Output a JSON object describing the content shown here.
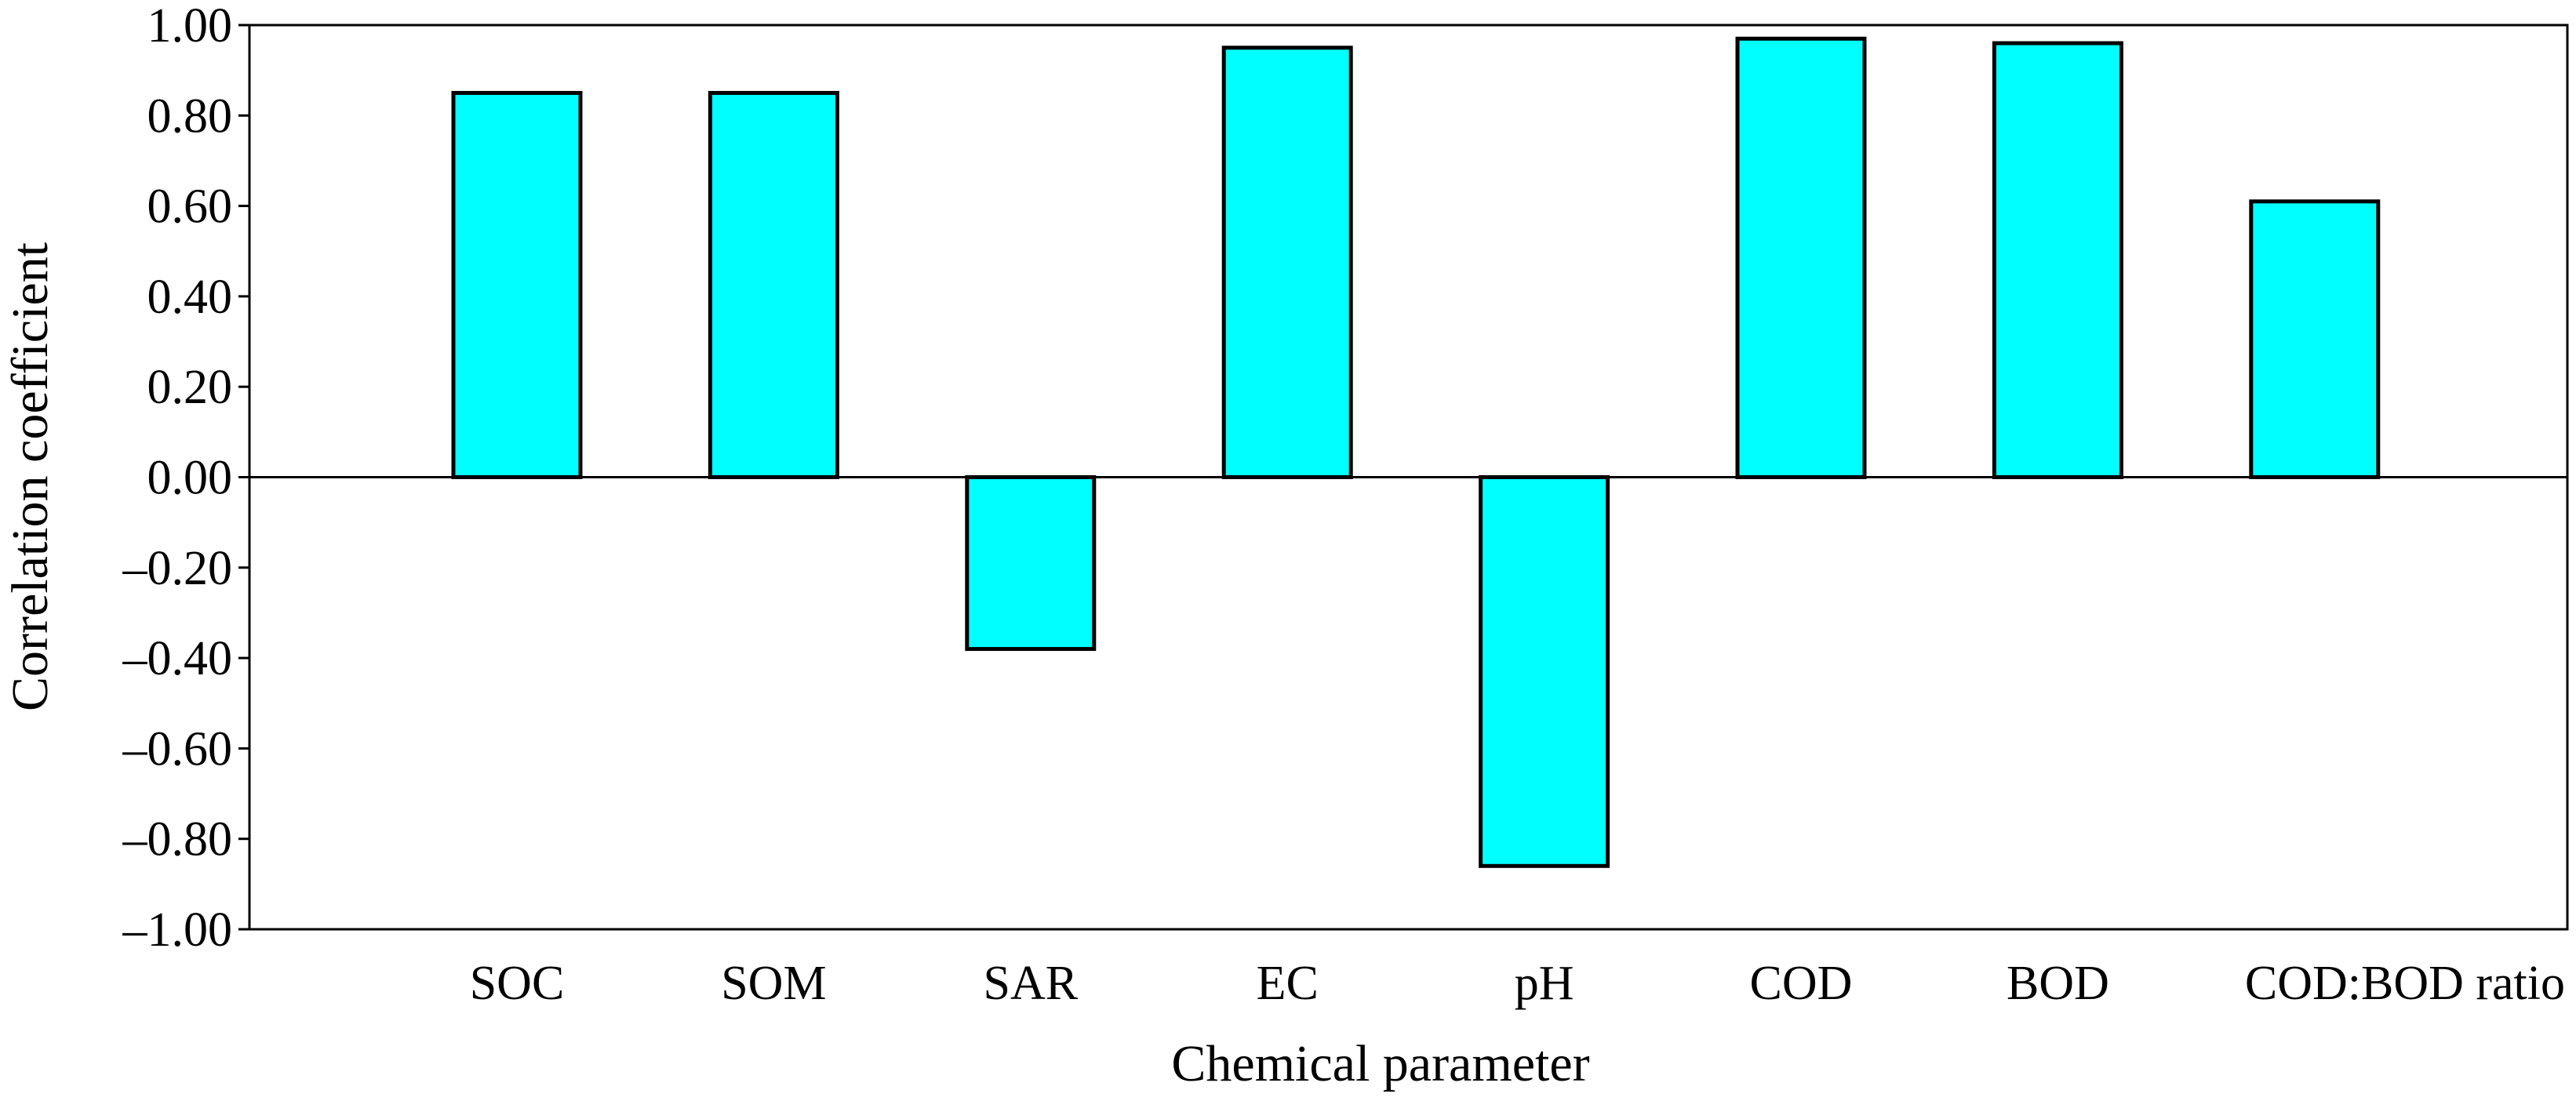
{
  "chart_data": {
    "type": "bar",
    "title": "",
    "xlabel": "Chemical parameter",
    "ylabel": "Correlation coefficient",
    "categories": [
      "SOC",
      "SOM",
      "SAR",
      "EC",
      "pH",
      "COD",
      "BOD",
      "COD:BOD ratio"
    ],
    "values": [
      0.85,
      0.85,
      -0.38,
      0.95,
      -0.86,
      0.97,
      0.96,
      0.61
    ],
    "ylim": [
      -1.0,
      1.0
    ],
    "yticks": [
      1.0,
      0.8,
      0.6,
      0.4,
      0.2,
      0.0,
      -0.2,
      -0.4,
      -0.6,
      -0.8,
      -1.0
    ],
    "ytick_labels": [
      "1.00",
      "0.80",
      "0.60",
      "0.40",
      "0.20",
      "0.00",
      "–0.20",
      "–0.40",
      "–0.60",
      "–0.80",
      "–1.00"
    ],
    "grid": false,
    "legend": "none",
    "bar_color": "#00FFFF",
    "bar_edge_color": "#000000"
  }
}
